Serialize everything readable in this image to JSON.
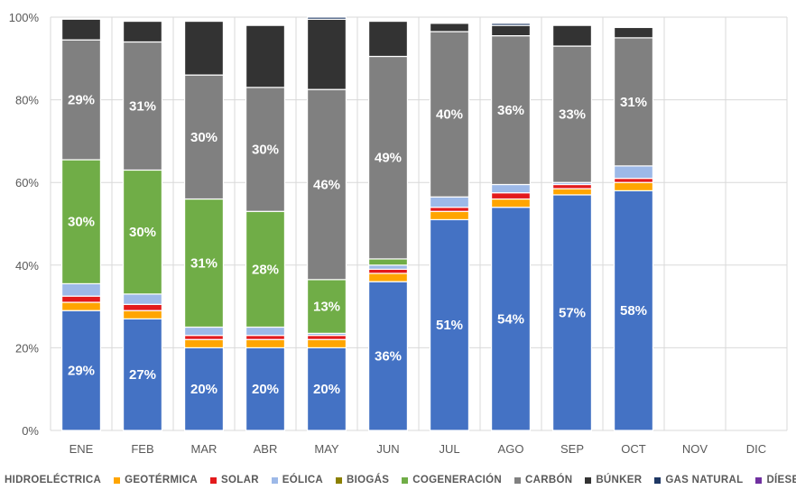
{
  "chart_data": {
    "type": "bar",
    "stacked": true,
    "y_format": "percent",
    "categories": [
      "ENE",
      "FEB",
      "MAR",
      "ABR",
      "MAY",
      "JUN",
      "JUL",
      "AGO",
      "SEP",
      "OCT",
      "NOV",
      "DIC"
    ],
    "ylim": [
      0,
      100
    ],
    "yticks": [
      "0%",
      "20%",
      "40%",
      "60%",
      "80%",
      "100%"
    ],
    "grid": true,
    "legend_position": "bottom",
    "series": [
      {
        "name": "HIDROELÉCTRICA",
        "color": "#4472C4",
        "values": [
          29,
          27,
          20,
          20,
          20,
          36,
          51,
          54,
          57,
          58,
          null,
          null
        ],
        "labels": [
          "29%",
          "27%",
          "20%",
          "20%",
          "20%",
          "36%",
          "51%",
          "54%",
          "57%",
          "58%",
          "",
          ""
        ]
      },
      {
        "name": "GEOTÉRMICA",
        "color": "#FFA500",
        "values": [
          2,
          2,
          2,
          2,
          2,
          2,
          2,
          2,
          1.5,
          2,
          null,
          null
        ],
        "labels": [
          "",
          "",
          "",
          "",
          "",
          "",
          "",
          "",
          "",
          "",
          "",
          ""
        ]
      },
      {
        "name": "SOLAR",
        "color": "#E31A1C",
        "values": [
          1.5,
          1.5,
          1,
          1,
          1,
          1,
          1,
          1.5,
          1,
          1,
          null,
          null
        ],
        "labels": [
          "",
          "",
          "",
          "",
          "",
          "",
          "",
          "",
          "",
          "",
          "",
          ""
        ]
      },
      {
        "name": "EÓLICA",
        "color": "#9DB9E8",
        "values": [
          3,
          2.5,
          2,
          2,
          0.5,
          1,
          2.5,
          2,
          0.5,
          3,
          null,
          null
        ],
        "labels": [
          "",
          "",
          "",
          "",
          "",
          "",
          "",
          "",
          "",
          "",
          "",
          ""
        ]
      },
      {
        "name": "BIOGÁS",
        "color": "#8B8000",
        "values": [
          0,
          0,
          0,
          0,
          0,
          0,
          0,
          0,
          0,
          0,
          null,
          null
        ],
        "labels": [
          "",
          "",
          "",
          "",
          "",
          "",
          "",
          "",
          "",
          "",
          "",
          ""
        ]
      },
      {
        "name": "COGENERACIÓN",
        "color": "#70AD47",
        "values": [
          30,
          30,
          31,
          28,
          13,
          1.5,
          0,
          0,
          0,
          0,
          null,
          null
        ],
        "labels": [
          "30%",
          "30%",
          "31%",
          "28%",
          "13%",
          "",
          "",
          "",
          "",
          "",
          "",
          ""
        ]
      },
      {
        "name": "CARBÓN",
        "color": "#808080",
        "values": [
          29,
          31,
          30,
          30,
          46,
          49,
          40,
          36,
          33,
          31,
          null,
          null
        ],
        "labels": [
          "29%",
          "31%",
          "30%",
          "30%",
          "46%",
          "49%",
          "40%",
          "36%",
          "33%",
          "31%",
          "",
          ""
        ]
      },
      {
        "name": "BÚNKER",
        "color": "#333333",
        "values": [
          5,
          5,
          13,
          15,
          17,
          8.5,
          2,
          2.5,
          5,
          2.5,
          null,
          null
        ],
        "labels": [
          "",
          "",
          "",
          "",
          "",
          "",
          "",
          "",
          "",
          "",
          "",
          ""
        ]
      },
      {
        "name": "GAS NATURAL",
        "color": "#1F3864",
        "values": [
          0,
          0,
          0,
          0,
          0.5,
          0,
          0,
          0.5,
          0,
          0,
          null,
          null
        ],
        "labels": [
          "",
          "",
          "",
          "",
          "",
          "",
          "",
          "",
          "",
          "",
          "",
          ""
        ]
      },
      {
        "name": "DÍESEI",
        "color": "#7030A0",
        "values": [
          0,
          0,
          0,
          0,
          0,
          0,
          0,
          0,
          0,
          0,
          null,
          null
        ],
        "labels": [
          "",
          "",
          "",
          "",
          "",
          "",
          "",
          "",
          "",
          "",
          "",
          ""
        ]
      }
    ]
  }
}
